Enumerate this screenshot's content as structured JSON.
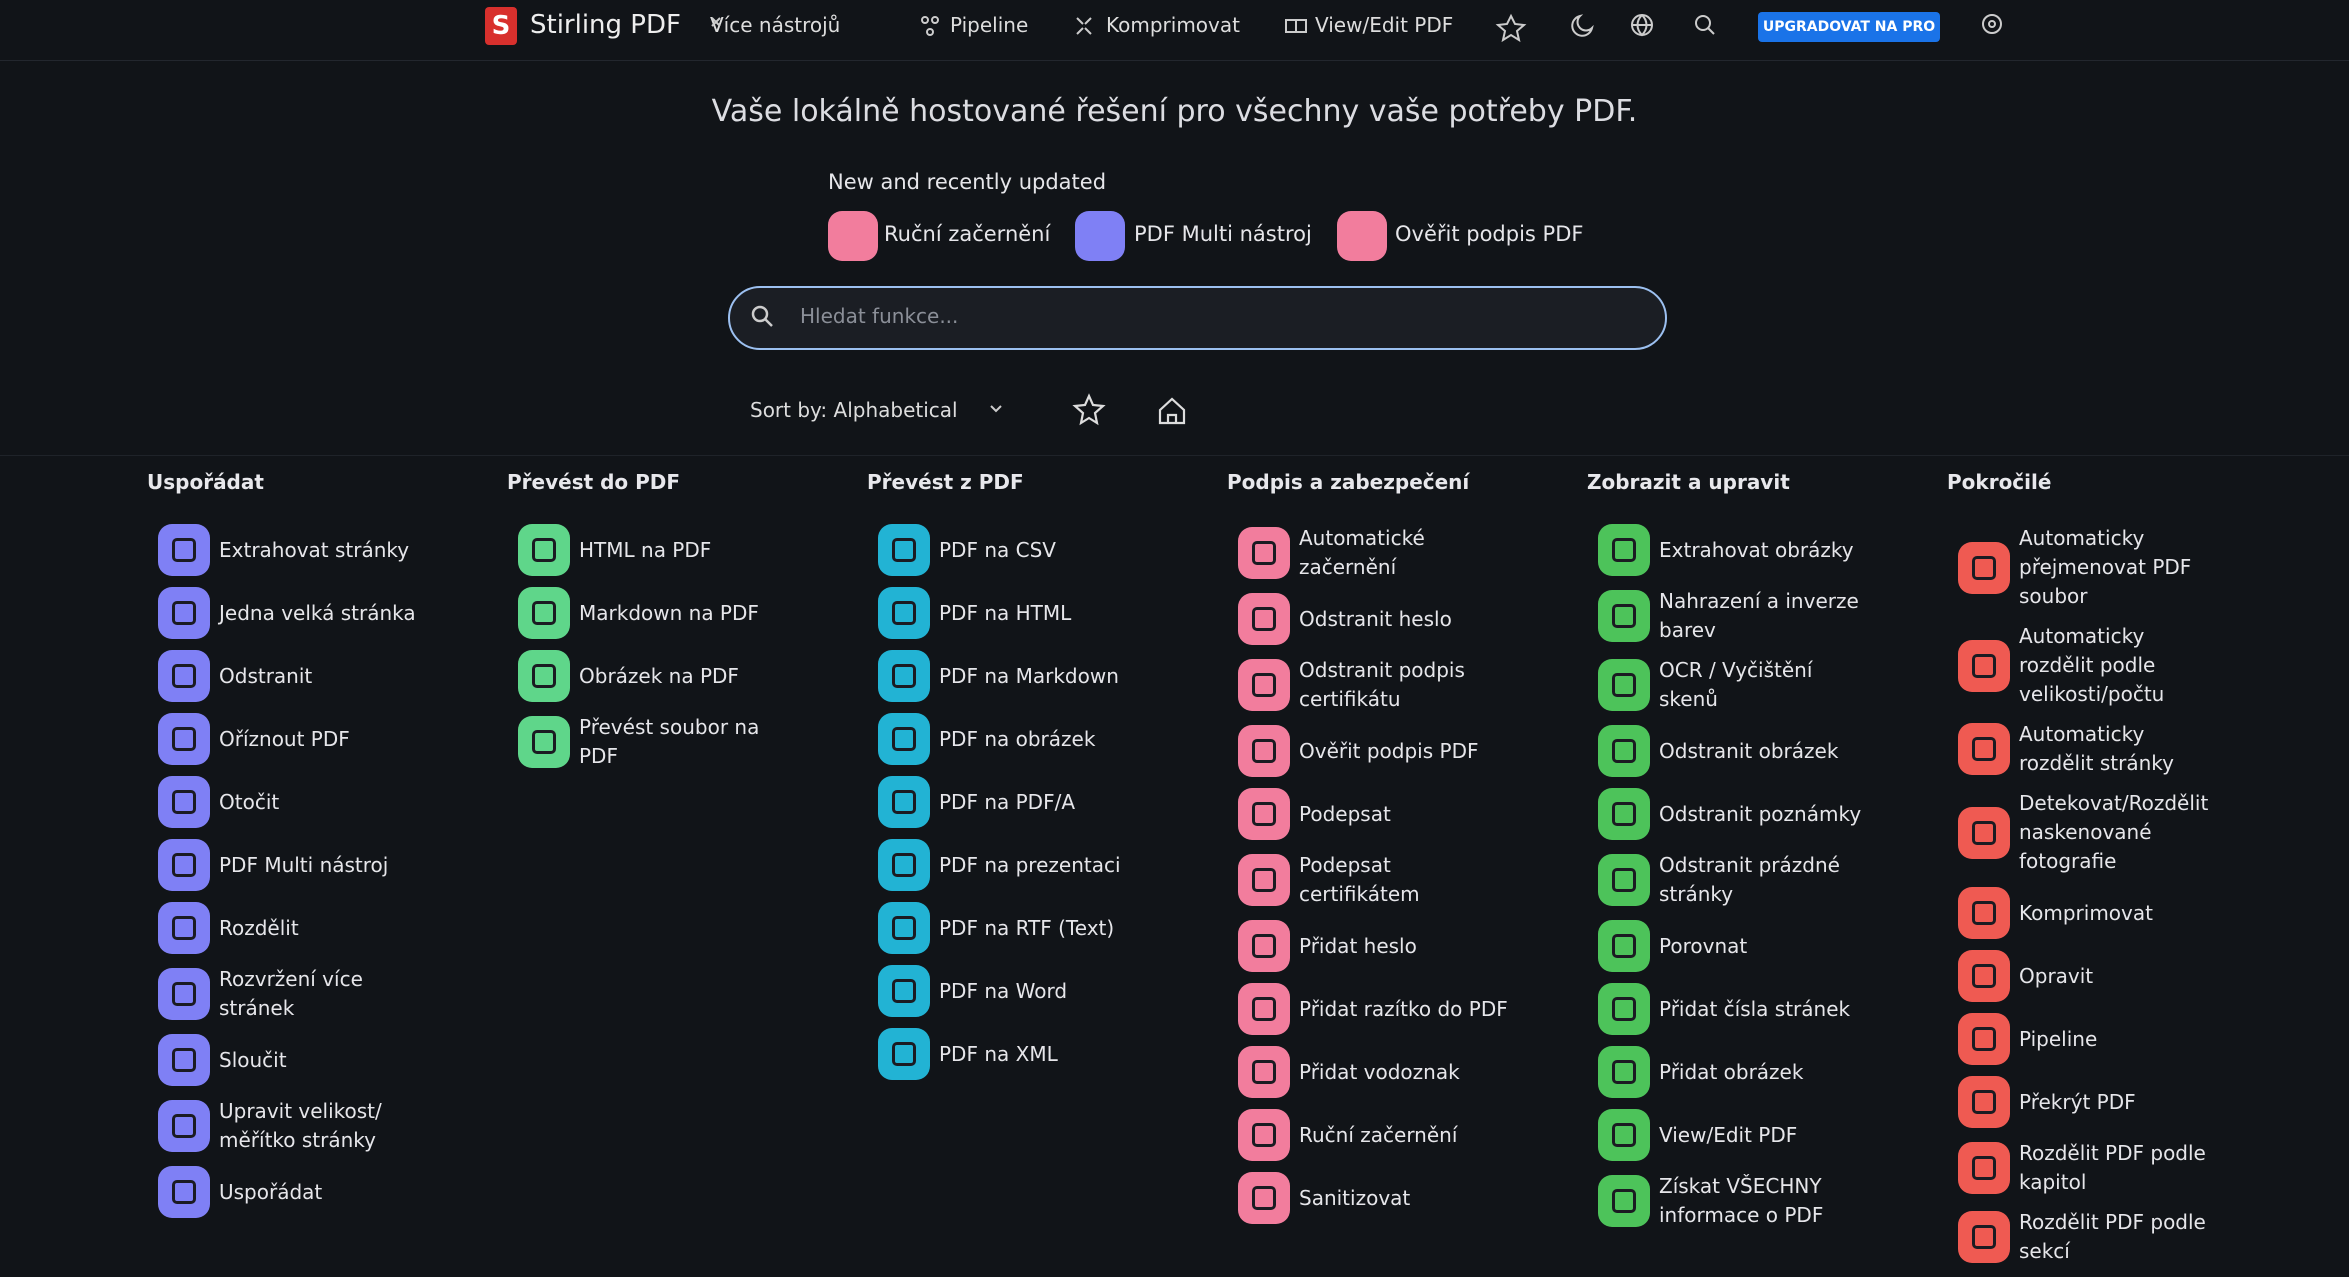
{
  "nav": {
    "brand": "Stirling PDF",
    "items": [
      "Více nástrojů",
      "Pipeline",
      "Komprimovat",
      "View/Edit PDF"
    ],
    "upgrade": "UPGRADOVAT NA PRO"
  },
  "hero": {
    "title": "Vaše lokálně hostované řešení pro všechny vaše potřeby PDF."
  },
  "recent": {
    "title": "New and recently updated",
    "items": [
      "Ruční začernění",
      "PDF Multi nástroj",
      "Ověřit podpis PDF"
    ]
  },
  "search": {
    "placeholder": "Hledat funkce..."
  },
  "sort": {
    "label": "Sort by: Alphabetical"
  },
  "columns": [
    {
      "title": "Uspořádat",
      "items": [
        "Extrahovat stránky",
        "Jedna velká stránka",
        "Odstranit",
        "Oříznout PDF",
        "Otočit",
        "PDF Multi nástroj",
        "Rozdělit",
        "Rozvržení více stránek",
        "Sloučit",
        "Upravit velikost/ měřítko stránky",
        "Uspořádat"
      ]
    },
    {
      "title": "Převést do PDF",
      "items": [
        "HTML na PDF",
        "Markdown na PDF",
        "Obrázek na PDF",
        "Převést soubor na PDF"
      ]
    },
    {
      "title": "Převést z PDF",
      "items": [
        "PDF na CSV",
        "PDF na HTML",
        "PDF na Markdown",
        "PDF na obrázek",
        "PDF na PDF/A",
        "PDF na prezentaci",
        "PDF na RTF (Text)",
        "PDF na Word",
        "PDF na XML"
      ]
    },
    {
      "title": "Podpis a zabezpečení",
      "items": [
        "Automatické začernění",
        "Odstranit heslo",
        "Odstranit podpis certifikátu",
        "Ověřit podpis PDF",
        "Podepsat",
        "Podepsat certifikátem",
        "Přidat heslo",
        "Přidat razítko do PDF",
        "Přidat vodoznak",
        "Ruční začernění",
        "Sanitizovat"
      ]
    },
    {
      "title": "Zobrazit a upravit",
      "items": [
        "Extrahovat obrázky",
        "Nahrazení a inverze barev",
        "OCR / Vyčištění skenů",
        "Odstranit obrázek",
        "Odstranit poznámky",
        "Odstranit prázdné stránky",
        "Porovnat",
        "Přidat čísla stránek",
        "Přidat obrázek",
        "View/Edit PDF",
        "Získat VŠECHNY informace o PDF"
      ]
    },
    {
      "title": "Pokročilé",
      "items": [
        "Automaticky přejmenovat PDF soubor",
        "Automaticky rozdělit podle velikosti/počtu",
        "Automaticky rozdělit stránky",
        "Detekovat/Rozdělit naskenované fotografie",
        "Komprimovat",
        "Opravit",
        "Pipeline",
        "Překrýt PDF",
        "Rozdělit PDF podle kapitol",
        "Rozdělit PDF podle sekcí"
      ]
    }
  ]
}
